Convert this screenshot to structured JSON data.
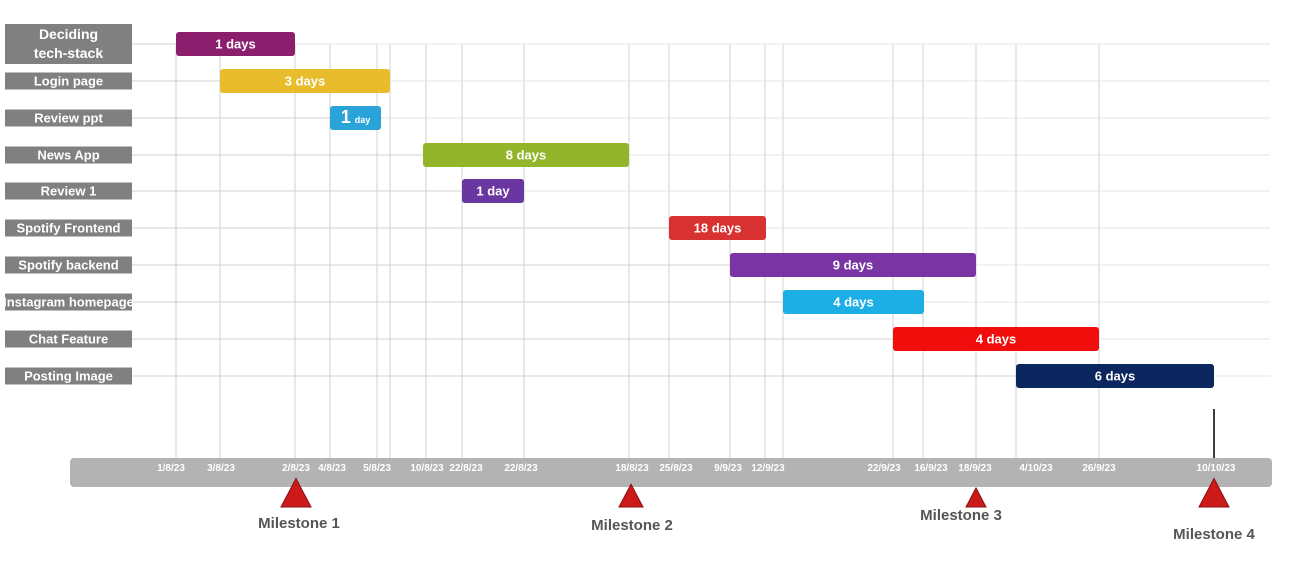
{
  "chart_data": {
    "type": "gantt",
    "colors": {
      "label_bg": "#808080",
      "timeline_bg": "#b3b3b3",
      "gridline": "#d0d0d0",
      "milestone": "#cc1a1a"
    },
    "tasks": [
      {
        "name": "Deciding tech-stack",
        "name_lines": [
          "Deciding",
          "tech-stack"
        ],
        "duration": "1 days",
        "color": "#8b1f6e"
      },
      {
        "name": "Login page",
        "duration": "3 days",
        "color": "#e8bc2c"
      },
      {
        "name": "Review ppt",
        "duration": "1 day",
        "duration_parts": [
          "1",
          "day"
        ],
        "color": "#29a3d8"
      },
      {
        "name": "News App",
        "duration": "8 days",
        "color": "#92b52a"
      },
      {
        "name": "Review 1",
        "duration": "1 day",
        "color": "#6a36a0"
      },
      {
        "name": "Spotify Frontend",
        "duration": "18 days",
        "color": "#d83131"
      },
      {
        "name": "Spotify backend",
        "duration": "9 days",
        "color": "#7a35a4"
      },
      {
        "name": "Instagram homepage",
        "duration": "4 days",
        "color": "#1daee6"
      },
      {
        "name": "Chat Feature",
        "duration": "4 days",
        "color": "#f20d0d"
      },
      {
        "name": "Posting Image",
        "duration": "6 days",
        "color": "#0c2660"
      }
    ],
    "dates": [
      "1/8/23",
      "3/8/23",
      "2/8/23",
      "4/8/23",
      "5/8/23",
      "10/8/23",
      "22/8/23",
      "22/8/23",
      "18/8/23",
      "25/8/23",
      "9/9/23",
      "12/9/23",
      "22/9/23",
      "16/9/23",
      "18/9/23",
      "4/10/23",
      "26/9/23",
      "10/10/23"
    ],
    "milestones": [
      "Milestone 1",
      "Milestone 2",
      "Milestone 3",
      "Milestone 4"
    ]
  }
}
